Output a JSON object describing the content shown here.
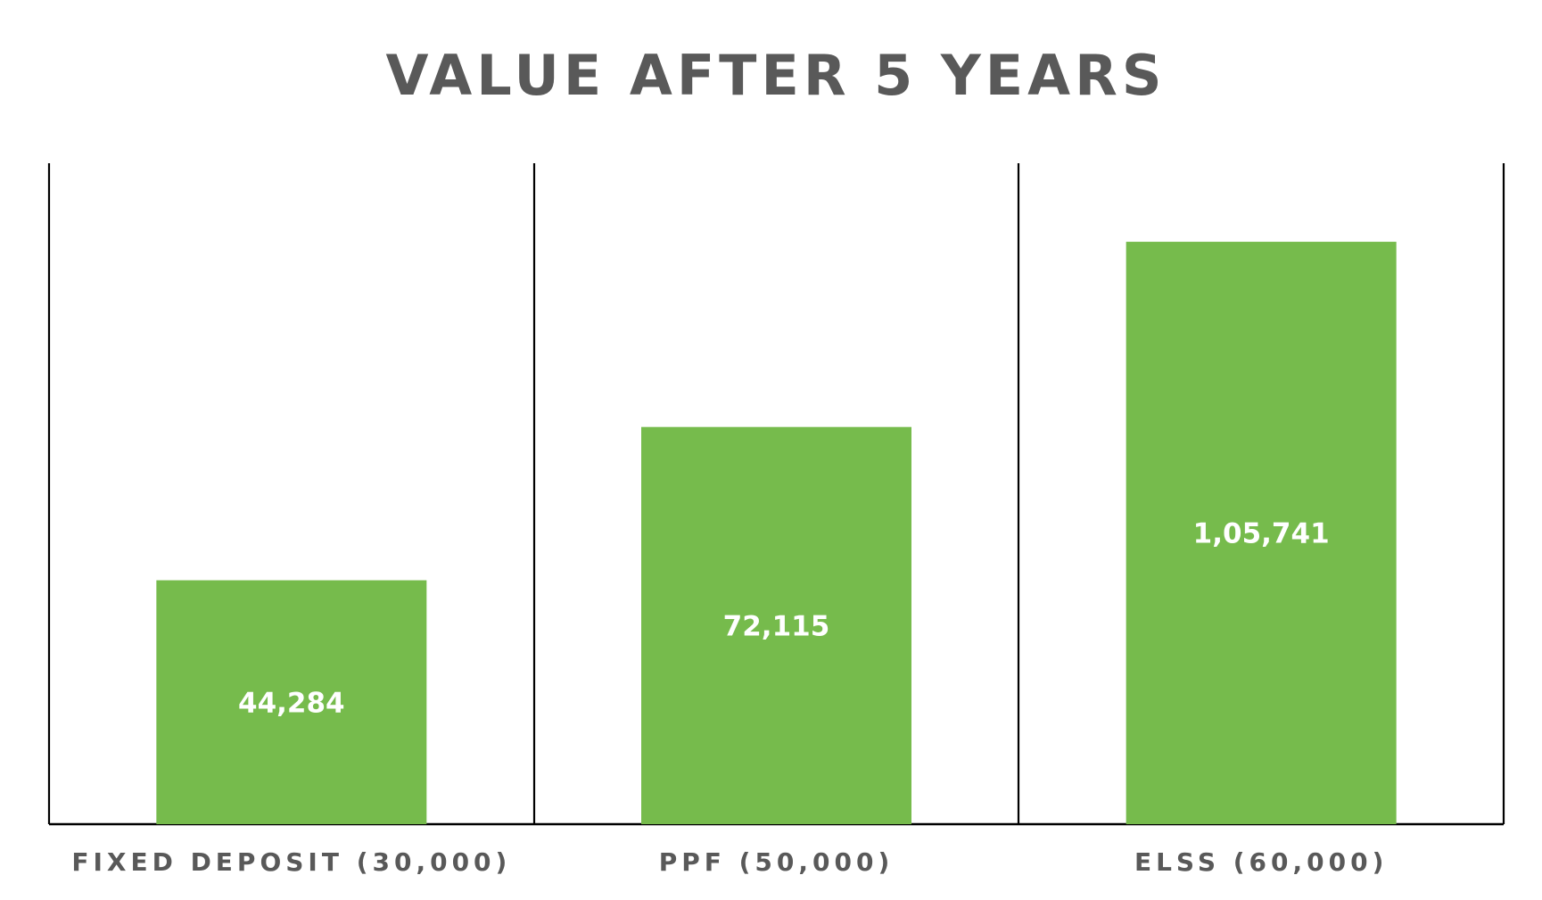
{
  "chart_data": {
    "type": "bar",
    "title": "VALUE AFTER 5 YEARS",
    "xlabel": "",
    "ylabel": "",
    "categories": [
      "FIXED DEPOSIT (30,000)",
      "PPF (50,000)",
      "ELSS (60,000)"
    ],
    "values": [
      44284,
      72115,
      105741
    ],
    "value_labels": [
      "44,284",
      "72,115",
      "1,05,741"
    ],
    "ylim": [
      0,
      120000
    ],
    "grid": false,
    "legend": "none",
    "colors": {
      "bar": "#76BB4C",
      "bar_label": "#FFFFFF",
      "title": "#595959",
      "category_label": "#595959",
      "axis": "#000000"
    }
  }
}
